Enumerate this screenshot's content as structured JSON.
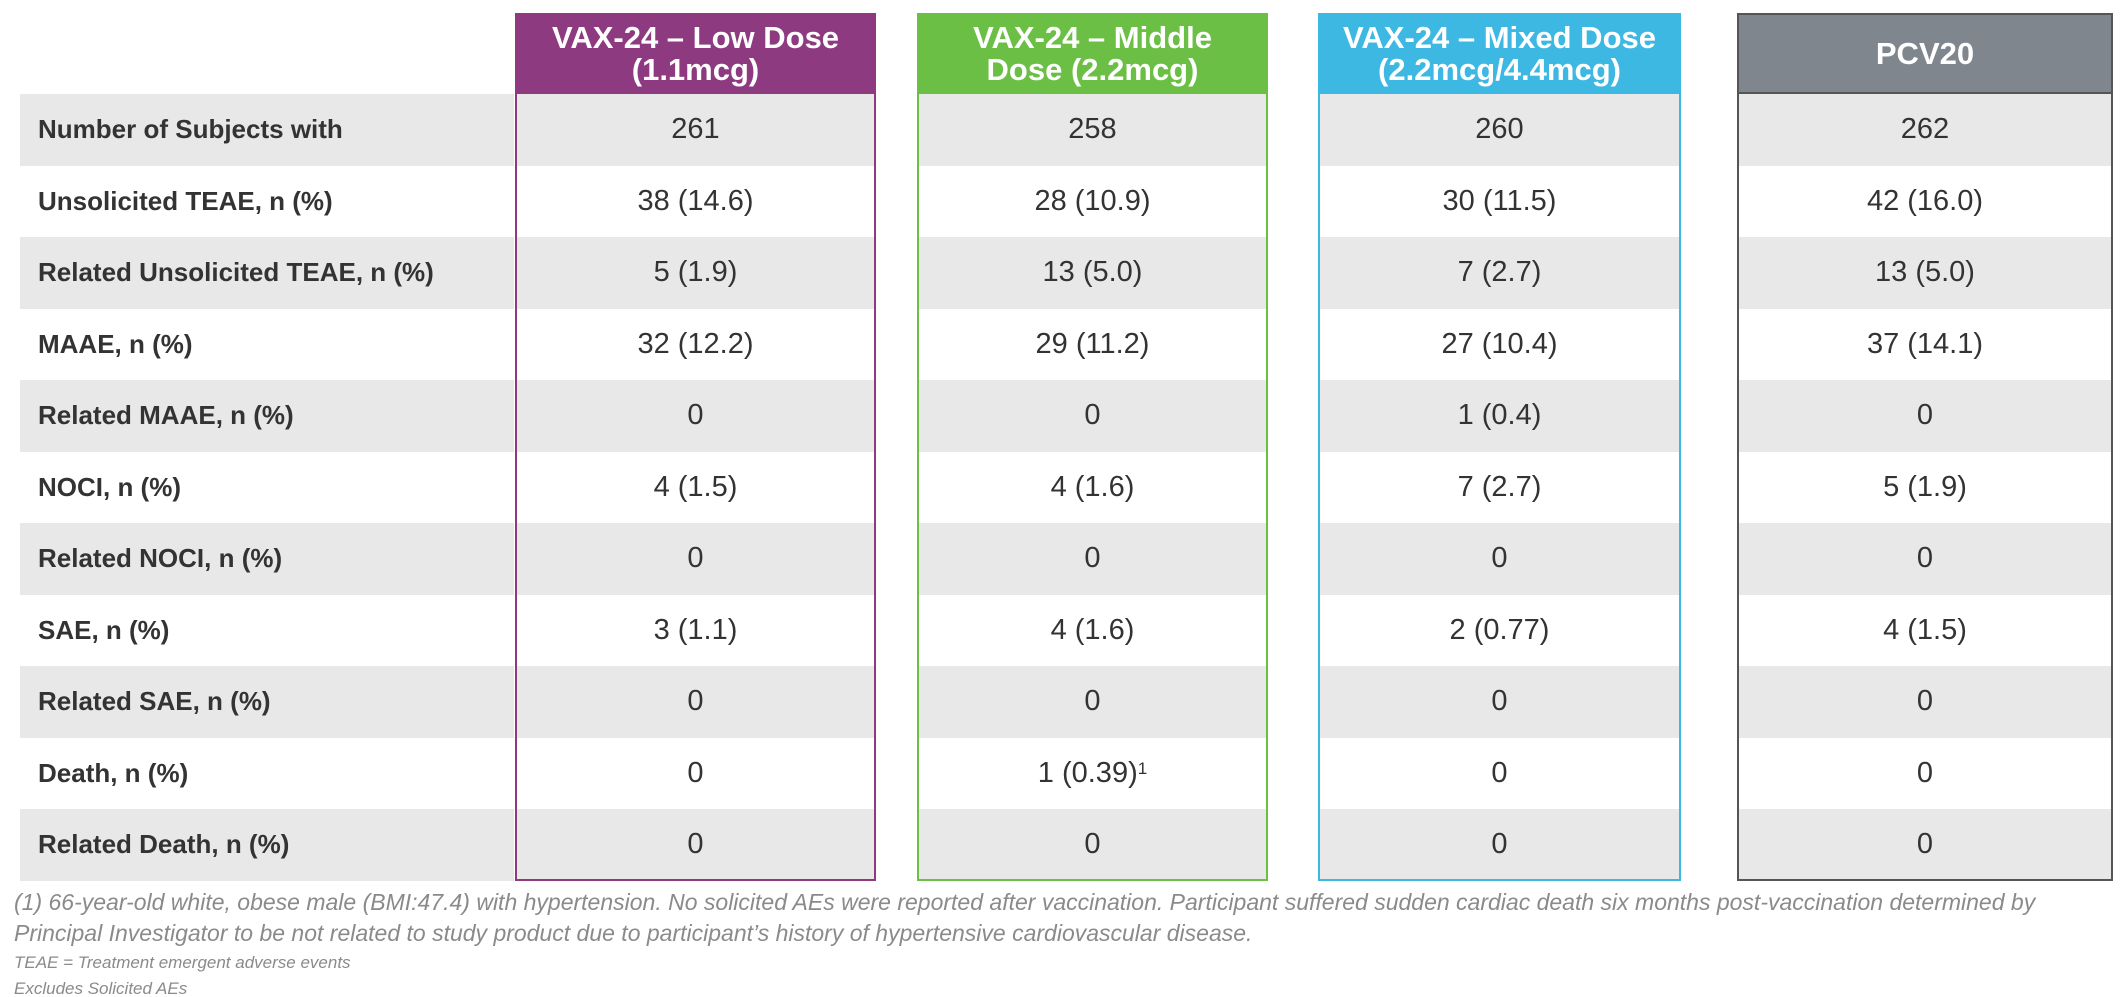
{
  "table": {
    "columns": [
      {
        "title_lines": [
          "VAX-24 – Low Dose",
          "(1.1mcg)"
        ],
        "color": "#8e3a80"
      },
      {
        "title_lines": [
          "VAX-24 – Middle",
          "Dose (2.2mcg)"
        ],
        "color": "#6cbf45"
      },
      {
        "title_lines": [
          "VAX-24 – Mixed Dose",
          "(2.2mcg/4.4mcg)"
        ],
        "color": "#3db8e2"
      },
      {
        "title_lines": [
          "PCV20"
        ],
        "color": "#80868d"
      }
    ],
    "rows": [
      {
        "label": "Number of Subjects with",
        "values": [
          "261",
          "258",
          "260",
          "262"
        ]
      },
      {
        "label": "Unsolicited TEAE, n (%)",
        "values": [
          "38 (14.6)",
          "28 (10.9)",
          "30 (11.5)",
          "42 (16.0)"
        ]
      },
      {
        "label": "Related Unsolicited TEAE, n (%)",
        "values": [
          "5 (1.9)",
          "13 (5.0)",
          "7 (2.7)",
          "13 (5.0)"
        ]
      },
      {
        "label": "MAAE, n (%)",
        "values": [
          "32 (12.2)",
          "29 (11.2)",
          "27 (10.4)",
          "37 (14.1)"
        ]
      },
      {
        "label": "Related MAAE, n (%)",
        "values": [
          "0",
          "0",
          "1 (0.4)",
          "0"
        ]
      },
      {
        "label": "NOCI, n (%)",
        "values": [
          "4 (1.5)",
          "4 (1.6)",
          "7 (2.7)",
          "5 (1.9)"
        ]
      },
      {
        "label": "Related NOCI, n (%)",
        "values": [
          "0",
          "0",
          "0",
          "0"
        ]
      },
      {
        "label": "SAE, n (%)",
        "values": [
          "3 (1.1)",
          "4 (1.6)",
          "2 (0.77)",
          "4 (1.5)"
        ]
      },
      {
        "label": "Related SAE, n (%)",
        "values": [
          "0",
          "0",
          "0",
          "0"
        ]
      },
      {
        "label": "Death, n (%)",
        "values": [
          "0",
          {
            "text": "1 (0.39)",
            "sup": "1"
          },
          "0",
          "0"
        ]
      },
      {
        "label": "Related Death, n (%)",
        "values": [
          "0",
          "0",
          "0",
          "0"
        ]
      }
    ]
  },
  "footnotes": {
    "note": "(1)  66-year-old white, obese male (BMI:47.4) with hypertension. No solicited AEs were reported after vaccination. Participant suffered sudden cardiac death six months post-vaccination determined by Principal Investigator to be not related to study product due to participant’s history of hypertensive cardiovascular disease.",
    "abbreviation": "TEAE = Treatment emergent adverse events",
    "exclusion": "Excludes Solicited AEs"
  }
}
